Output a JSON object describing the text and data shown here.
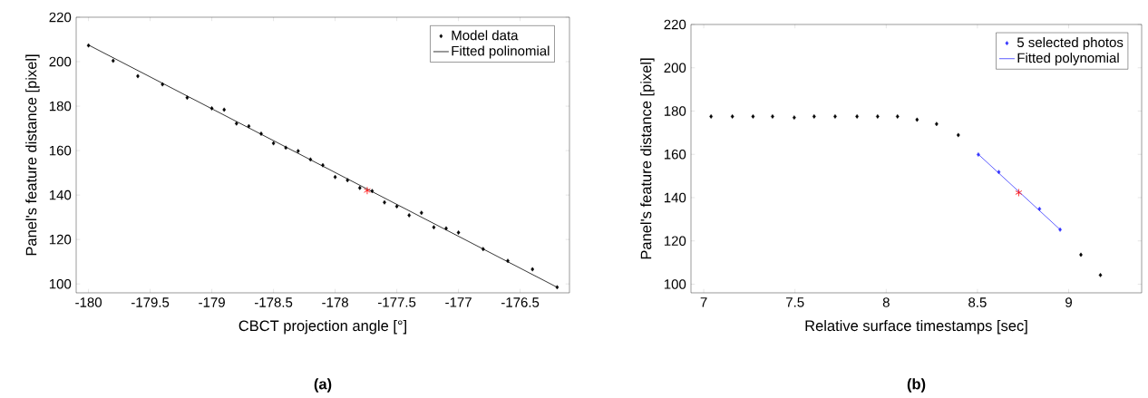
{
  "chart_data": [
    {
      "type": "scatter",
      "xlabel": "CBCT projection angle [°]",
      "ylabel": "Panel's feature distance [pixel]",
      "xlim": [
        -180.1,
        -176.1
      ],
      "ylim": [
        96,
        220
      ],
      "xticks": [
        -180,
        -179.5,
        -179,
        -178.5,
        -178,
        -177.5,
        -177,
        -176.5
      ],
      "yticks": [
        100,
        120,
        140,
        160,
        180,
        200,
        220
      ],
      "grid": false,
      "legend": "top right",
      "annotations": [
        "(a)"
      ],
      "series": [
        {
          "type": "scatter",
          "name": "Model data",
          "color": "#000000",
          "marker": "diamond",
          "x": [
            -180,
            -179.8,
            -179.6,
            -179.4,
            -179.2,
            -179.0,
            -178.9,
            -178.8,
            -178.7,
            -178.6,
            -178.5,
            -178.4,
            -178.3,
            -178.2,
            -178.1,
            -178.0,
            -177.9,
            -177.8,
            -177.7,
            -177.6,
            -177.5,
            -177.4,
            -177.3,
            -177.2,
            -177.1,
            -177.0,
            -176.8,
            -176.6,
            -176.4,
            -176.2
          ],
          "values": [
            207.3,
            200.4,
            193.5,
            189.8,
            183.8,
            179,
            178.4,
            172.2,
            171,
            167.6,
            163.3,
            161.3,
            159.8,
            156,
            153.4,
            148.1,
            146.7,
            143.2,
            141.8,
            136.7,
            134.9,
            130.9,
            132,
            125.5,
            125,
            123.1,
            115.7,
            110.4,
            106.6,
            98.5
          ]
        },
        {
          "type": "line",
          "name": "Fitted polinomial",
          "color": "#000000",
          "line_style": "solid",
          "x": [
            -180,
            -176.2
          ],
          "values": [
            207.5,
            98.5
          ]
        },
        {
          "type": "scatter",
          "color": "#ff0000",
          "marker": "cross",
          "x": [
            -177.74
          ],
          "values": [
            142
          ]
        }
      ]
    },
    {
      "type": "scatter",
      "xlabel": "Relative surface timestamps [sec]",
      "ylabel": "Panel's feature distance [pixel]",
      "xlim": [
        6.93,
        9.4
      ],
      "ylim": [
        96,
        220
      ],
      "xticks": [
        7,
        7.5,
        8,
        8.5,
        9
      ],
      "yticks": [
        100,
        120,
        140,
        160,
        180,
        200,
        220
      ],
      "grid": false,
      "legend": "top right",
      "annotations": [
        "(b)"
      ],
      "series": [
        {
          "type": "scatter",
          "color": "#000000",
          "marker": "diamond",
          "x": [
            7.04,
            7.157,
            7.27,
            7.377,
            7.496,
            7.605,
            7.72,
            7.84,
            7.953,
            8.062,
            8.169,
            8.276,
            8.395,
            9.067,
            9.174
          ],
          "values": [
            177.5,
            177.5,
            177.5,
            177.5,
            177.0,
            177.5,
            177.5,
            177.5,
            177.5,
            177.5,
            176.0,
            174.0,
            168.9,
            113.6,
            104.2
          ]
        },
        {
          "type": "scatter",
          "name": "5 selected photos",
          "color": "#3333ff",
          "marker": "diamond",
          "x": [
            8.505,
            8.617,
            8.726,
            8.84,
            8.953
          ],
          "values": [
            159.9,
            151.8,
            null,
            134.8,
            125.2
          ]
        },
        {
          "type": "line",
          "name": "Fitted polynomial",
          "color": "#3333ff",
          "line_style": "solid",
          "x": [
            8.505,
            8.953
          ],
          "values": [
            160,
            125.2
          ]
        },
        {
          "type": "scatter",
          "color": "#ff0000",
          "marker": "cross",
          "x": [
            8.726
          ],
          "values": [
            142.3
          ]
        }
      ]
    }
  ]
}
